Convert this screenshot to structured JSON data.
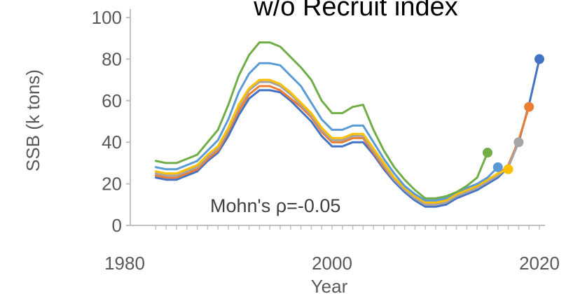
{
  "chart_data": {
    "type": "line",
    "title": "w/o Recruit index",
    "xlabel": "Year",
    "ylabel": "SSB (k tons)",
    "xlim": [
      1980,
      2020
    ],
    "ylim": [
      0,
      100
    ],
    "xticks": [
      1980,
      2000,
      2020
    ],
    "yticks": [
      0,
      20,
      40,
      60,
      80,
      100
    ],
    "grid": false,
    "legend": "none",
    "annotation": "Mohn's ρ=-0.05",
    "series": [
      {
        "color": "#4472c4",
        "x": [
          1983,
          1984,
          1985,
          1986,
          1987,
          1988,
          1989,
          1990,
          1991,
          1992,
          1993,
          1994,
          1995,
          1996,
          1997,
          1998,
          1999,
          2000,
          2001,
          2002,
          2003,
          2004,
          2005,
          2006,
          2007,
          2008,
          2009,
          2010,
          2011,
          2012,
          2013,
          2014,
          2015,
          2016,
          2017,
          2018,
          2019,
          2020
        ],
        "y": [
          23,
          22,
          22,
          24,
          26,
          31,
          35,
          43,
          53,
          61,
          65,
          65,
          64,
          60,
          55,
          50,
          43,
          38,
          38,
          40,
          40,
          34,
          27,
          21,
          16,
          12,
          9,
          9,
          10,
          13,
          15,
          17,
          20,
          23,
          28,
          40,
          58,
          80
        ],
        "endpoint": true
      },
      {
        "color": "#ed7d31",
        "x": [
          1983,
          1984,
          1985,
          1986,
          1987,
          1988,
          1989,
          1990,
          1991,
          1992,
          1993,
          1994,
          1995,
          1996,
          1997,
          1998,
          1999,
          2000,
          2001,
          2002,
          2003,
          2004,
          2005,
          2006,
          2007,
          2008,
          2009,
          2010,
          2011,
          2012,
          2013,
          2014,
          2015,
          2016,
          2017,
          2018,
          2019
        ],
        "y": [
          24,
          23,
          23,
          25,
          27,
          32,
          36,
          45,
          55,
          63,
          67,
          67,
          65,
          61,
          57,
          52,
          45,
          40,
          40,
          42,
          42,
          35,
          28,
          22,
          17,
          13,
          10,
          10,
          11,
          14,
          16,
          18,
          21,
          24,
          29,
          41,
          57
        ],
        "endpoint": true
      },
      {
        "color": "#a5a5a5",
        "x": [
          1983,
          1984,
          1985,
          1986,
          1987,
          1988,
          1989,
          1990,
          1991,
          1992,
          1993,
          1994,
          1995,
          1996,
          1997,
          1998,
          1999,
          2000,
          2001,
          2002,
          2003,
          2004,
          2005,
          2006,
          2007,
          2008,
          2009,
          2010,
          2011,
          2012,
          2013,
          2014,
          2015,
          2016,
          2017,
          2018
        ],
        "y": [
          25,
          24,
          24,
          26,
          28,
          33,
          37,
          46,
          57,
          65,
          69,
          69,
          67,
          63,
          58,
          53,
          46,
          41,
          41,
          43,
          43,
          36,
          29,
          22,
          17,
          13,
          10,
          10,
          11,
          14,
          16,
          18,
          21,
          24,
          28,
          40
        ],
        "endpoint": true
      },
      {
        "color": "#ffc000",
        "x": [
          1983,
          1984,
          1985,
          1986,
          1987,
          1988,
          1989,
          1990,
          1991,
          1992,
          1993,
          1994,
          1995,
          1996,
          1997,
          1998,
          1999,
          2000,
          2001,
          2002,
          2003,
          2004,
          2005,
          2006,
          2007,
          2008,
          2009,
          2010,
          2011,
          2012,
          2013,
          2014,
          2015,
          2016,
          2017
        ],
        "y": [
          26,
          25,
          25,
          27,
          29,
          34,
          38,
          47,
          58,
          66,
          70,
          70,
          68,
          64,
          59,
          54,
          47,
          42,
          42,
          44,
          44,
          37,
          30,
          23,
          18,
          14,
          11,
          11,
          12,
          15,
          17,
          19,
          22,
          25,
          27
        ],
        "endpoint": true
      },
      {
        "color": "#5b9bd5",
        "x": [
          1983,
          1984,
          1985,
          1986,
          1987,
          1988,
          1989,
          1990,
          1991,
          1992,
          1993,
          1994,
          1995,
          1996,
          1997,
          1998,
          1999,
          2000,
          2001,
          2002,
          2003,
          2004,
          2005,
          2006,
          2007,
          2008,
          2009,
          2010,
          2011,
          2012,
          2013,
          2014,
          2015,
          2016
        ],
        "y": [
          28,
          27,
          27,
          29,
          31,
          36,
          41,
          51,
          64,
          73,
          78,
          78,
          77,
          72,
          67,
          59,
          51,
          46,
          46,
          48,
          48,
          40,
          32,
          25,
          19,
          15,
          12,
          12,
          13,
          16,
          18,
          20,
          23,
          28
        ],
        "endpoint": true
      },
      {
        "color": "#70ad47",
        "x": [
          1983,
          1984,
          1985,
          1986,
          1987,
          1988,
          1989,
          1990,
          1991,
          1992,
          1993,
          1994,
          1995,
          1996,
          1997,
          1998,
          1999,
          2000,
          2001,
          2002,
          2003,
          2004,
          2005,
          2006,
          2007,
          2008,
          2009,
          2010,
          2011,
          2012,
          2013,
          2014,
          2015
        ],
        "y": [
          31,
          30,
          30,
          32,
          34,
          40,
          46,
          58,
          72,
          82,
          88,
          88,
          86,
          81,
          76,
          70,
          60,
          54,
          54,
          57,
          58,
          46,
          36,
          28,
          22,
          17,
          13,
          13,
          14,
          16,
          19,
          23,
          35
        ],
        "endpoint": true
      }
    ]
  }
}
